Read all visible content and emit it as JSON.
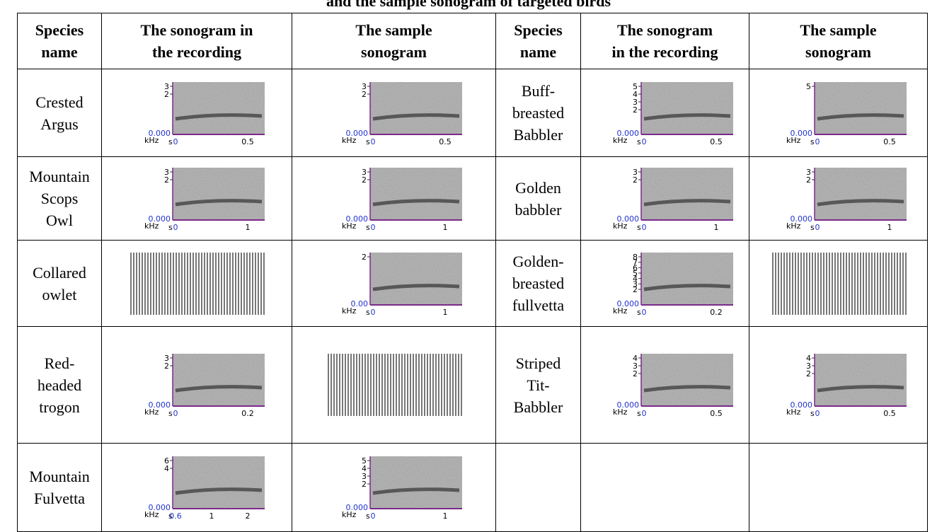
{
  "title": "and the sample sonogram of targeted birds",
  "header": [
    [
      "Species",
      "name"
    ],
    [
      "The sonogram in",
      "the recording"
    ],
    [
      "The sample",
      "sonogram"
    ],
    [
      "Species",
      "name"
    ],
    [
      "The sonogram",
      "in the recording"
    ],
    [
      "The sample",
      "sonogram"
    ]
  ],
  "rows": [
    {
      "left": {
        "name": [
          "Crested",
          "Argus"
        ],
        "recording": {
          "y_labels": [
            "3",
            "2"
          ],
          "zero": "0.000",
          "unit": "kHz",
          "x_unit": "s",
          "x_labels": [
            "0",
            "0.5"
          ]
        },
        "sample": {
          "y_labels": [
            "3",
            "2"
          ],
          "zero": "0.000",
          "unit": "kHz",
          "x_unit": "s",
          "x_labels": [
            "0",
            "0.5"
          ]
        }
      },
      "right": {
        "name": [
          "Buff-",
          "breasted",
          "Babbler"
        ],
        "recording": {
          "y_labels": [
            "5",
            "4",
            "3",
            "2"
          ],
          "zero": "0.000",
          "unit": "kHz",
          "x_unit": "s",
          "x_labels": [
            "0",
            "0.5"
          ]
        },
        "sample": {
          "y_labels": [
            "5"
          ],
          "zero": "0.000",
          "unit": "kHz",
          "x_unit": "s",
          "x_labels": [
            "0",
            "0.5"
          ]
        }
      }
    },
    {
      "left": {
        "name": [
          "Mountain",
          "Scops",
          "Owl"
        ],
        "recording": {
          "y_labels": [
            "3",
            "2"
          ],
          "zero": "0.000",
          "unit": "kHz",
          "x_unit": "s",
          "x_labels": [
            "0",
            "1"
          ]
        },
        "sample": {
          "y_labels": [
            "3",
            "2"
          ],
          "zero": "0.000",
          "unit": "kHz",
          "x_unit": "s",
          "x_labels": [
            "0",
            "1"
          ]
        }
      },
      "right": {
        "name": [
          "Golden",
          "babbler"
        ],
        "recording": {
          "y_labels": [
            "3",
            "2"
          ],
          "zero": "0.000",
          "unit": "kHz",
          "x_unit": "s",
          "x_labels": [
            "0",
            "1"
          ]
        },
        "sample": {
          "y_labels": [
            "3",
            "2"
          ],
          "zero": "0.000",
          "unit": "kHz",
          "x_unit": "s",
          "x_labels": [
            "0",
            "1"
          ]
        }
      }
    },
    {
      "left": {
        "name": [
          "Collared",
          "owlet"
        ],
        "recording": null,
        "sample": {
          "y_labels": [
            "2"
          ],
          "zero": "0.00",
          "unit": "kHz",
          "x_unit": "s",
          "x_labels": [
            "0",
            "1"
          ]
        }
      },
      "right": {
        "name": [
          "Golden-",
          "breasted",
          "fullvetta"
        ],
        "recording": {
          "y_labels": [
            "8",
            "7",
            "6",
            "5",
            "4",
            "3",
            "2"
          ],
          "zero": "0.000",
          "unit": "kHz",
          "x_unit": "s",
          "x_labels": [
            "0",
            "0.2"
          ]
        },
        "sample": null
      }
    },
    {
      "left": {
        "name": [
          "Red-",
          "headed",
          "trogon"
        ],
        "recording": {
          "y_labels": [
            "3",
            "2"
          ],
          "zero": "0.000",
          "unit": "kHz",
          "x_unit": "s",
          "x_labels": [
            "0",
            "0.2"
          ]
        },
        "sample": null
      },
      "right": {
        "name": [
          "Striped",
          "Tit-",
          "Babbler"
        ],
        "recording": {
          "y_labels": [
            "4",
            "3",
            "2"
          ],
          "zero": "0.000",
          "unit": "kHz",
          "x_unit": "s",
          "x_labels": [
            "0",
            "0.5"
          ]
        },
        "sample": {
          "y_labels": [
            "4",
            "3",
            "2"
          ],
          "zero": "0.000",
          "unit": "kHz",
          "x_unit": "s",
          "x_labels": [
            "0",
            "0.5"
          ]
        }
      }
    },
    {
      "left": {
        "name": [
          "Mountain",
          "Fulvetta"
        ],
        "recording": {
          "y_labels": [
            "6",
            "4"
          ],
          "zero": "0.000",
          "unit": "kHz",
          "x_unit": "s",
          "x_labels": [
            "0.6",
            "1",
            "2"
          ]
        },
        "sample": {
          "y_labels": [
            "5",
            "4",
            "3",
            "2"
          ],
          "zero": "0.000",
          "unit": "kHz",
          "x_unit": "s",
          "x_labels": [
            "0",
            "1"
          ]
        }
      },
      "right": null
    }
  ]
}
